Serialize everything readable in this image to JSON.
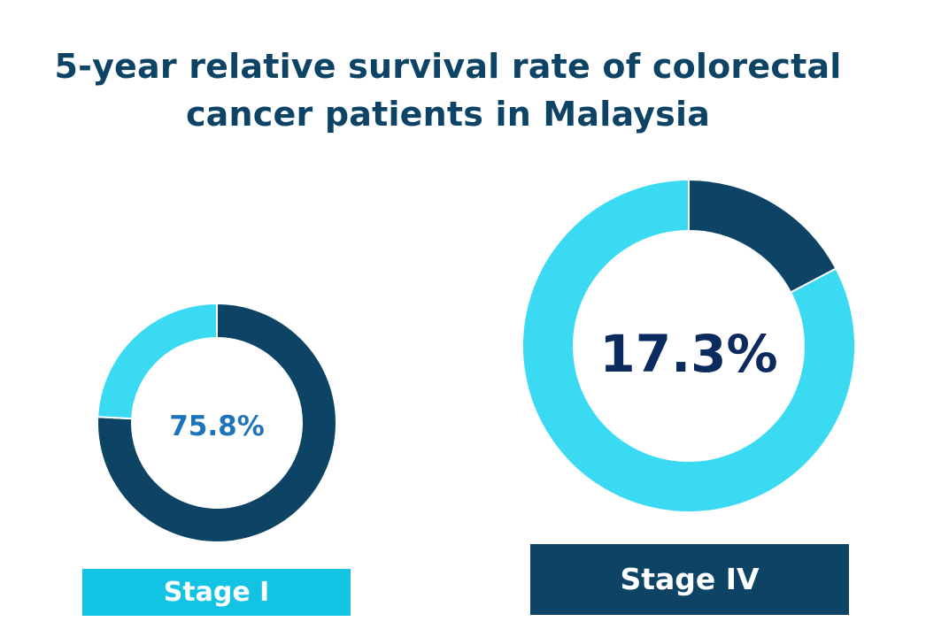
{
  "chart_data": [
    {
      "type": "pie",
      "title": "5-year relative survival rate of colorectal cancer patients in Malaysia",
      "label": "Stage I",
      "center_text": "75.8%",
      "slices": [
        {
          "value": 75.8,
          "color": "#0d4466"
        },
        {
          "value": 24.2,
          "color": "#39daf2"
        }
      ]
    },
    {
      "type": "pie",
      "label": "Stage IV",
      "center_text": "17.3%",
      "slices": [
        {
          "value": 17.3,
          "color": "#0d4466"
        },
        {
          "value": 82.7,
          "color": "#39daf2"
        }
      ]
    }
  ],
  "title_lines": [
    "5-year relative survival rate of colorectal",
    "cancer patients in Malaysia"
  ]
}
